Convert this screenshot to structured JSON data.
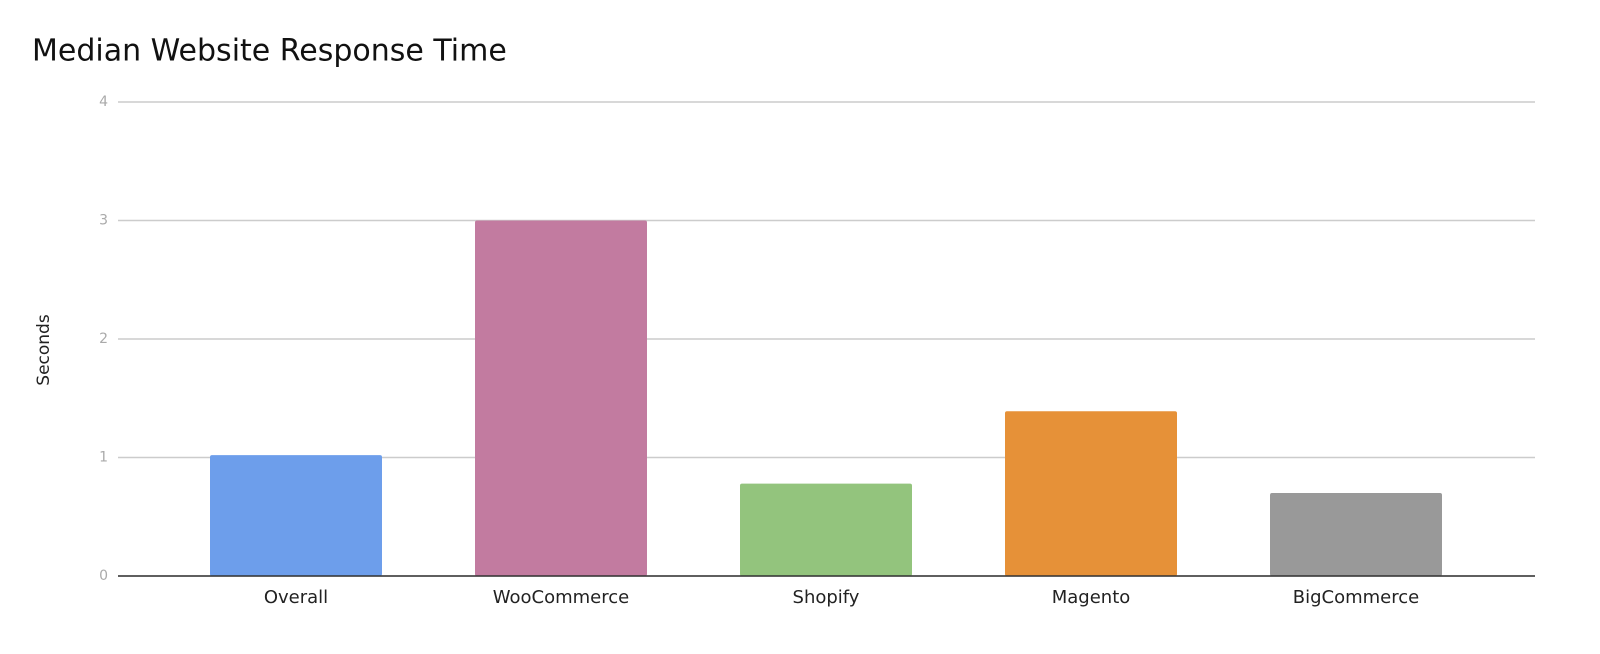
{
  "chart_data": {
    "type": "bar",
    "title": "Median Website Response Time",
    "y_label": "Seconds",
    "categories": [
      "Overall",
      "WooCommerce",
      "Shopify",
      "Magento",
      "BigCommerce"
    ],
    "values": [
      1.02,
      3.0,
      0.78,
      1.39,
      0.7
    ],
    "colors": [
      "#6d9eeb",
      "#c27ba0",
      "#93c47d",
      "#e69138",
      "#999999"
    ],
    "ylim": [
      0,
      4
    ],
    "yticks": [
      0,
      1,
      2,
      3,
      4
    ],
    "grid": true
  }
}
